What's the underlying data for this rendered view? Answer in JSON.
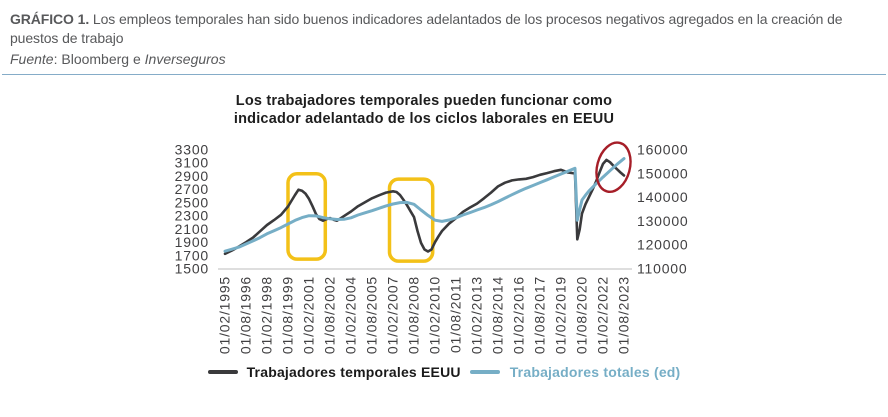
{
  "header": {
    "label": "GRÁFICO 1.",
    "caption": "Los empleos temporales han sido buenos indicadores adelantados de los procesos negativos agregados en la creación de puestos de trabajo",
    "source_word": "Fuente",
    "source_sep": ": ",
    "source_text": "Bloomberg e ",
    "source_name": "Inverseguros"
  },
  "chart_data": {
    "type": "line",
    "title_line1": "Los trabajadores temporales pueden funcionar como",
    "title_line2": "indicador adelantado de los ciclos laborales en EEUU",
    "grid": false,
    "legend_position": "bottom",
    "left_axis": {
      "min": 1500,
      "max": 3300,
      "ticks": [
        3300,
        3100,
        2900,
        2700,
        2500,
        2300,
        2100,
        1900,
        1700,
        1500
      ]
    },
    "right_axis": {
      "min": 110000,
      "max": 160000,
      "ticks": [
        160000,
        150000,
        140000,
        130000,
        120000,
        110000
      ]
    },
    "x_tick_labels": [
      "01/02/1995",
      "01/08/1996",
      "01/02/1998",
      "01/08/1999",
      "01/02/2001",
      "01/08/2002",
      "01/02/2004",
      "01/08/2005",
      "01/02/2007",
      "01/08/2008",
      "01/02/2010",
      "01/08/2011",
      "01/02/2013",
      "01/08/2014",
      "01/02/2016",
      "01/08/2017",
      "01/02/2019",
      "01/08/2020",
      "01/02/2022",
      "01/08/2023"
    ],
    "x_tick_month_step": 18,
    "series": [
      {
        "name": "Trabajadores temporales EEUU",
        "axis": "left",
        "color": "#3A3A3C",
        "width": 2.6,
        "points": [
          [
            0,
            1730
          ],
          [
            6,
            1780
          ],
          [
            12,
            1840
          ],
          [
            18,
            1905
          ],
          [
            24,
            1975
          ],
          [
            30,
            2070
          ],
          [
            36,
            2165
          ],
          [
            42,
            2240
          ],
          [
            48,
            2320
          ],
          [
            54,
            2445
          ],
          [
            60,
            2620
          ],
          [
            63,
            2700
          ],
          [
            66,
            2685
          ],
          [
            69,
            2640
          ],
          [
            72,
            2560
          ],
          [
            75,
            2450
          ],
          [
            78,
            2330
          ],
          [
            81,
            2255
          ],
          [
            84,
            2230
          ],
          [
            87,
            2255
          ],
          [
            90,
            2270
          ],
          [
            93,
            2245
          ],
          [
            96,
            2230
          ],
          [
            102,
            2300
          ],
          [
            108,
            2370
          ],
          [
            114,
            2450
          ],
          [
            120,
            2510
          ],
          [
            126,
            2570
          ],
          [
            132,
            2615
          ],
          [
            138,
            2655
          ],
          [
            144,
            2675
          ],
          [
            147,
            2665
          ],
          [
            150,
            2620
          ],
          [
            153,
            2545
          ],
          [
            156,
            2465
          ],
          [
            159,
            2375
          ],
          [
            162,
            2285
          ],
          [
            165,
            2075
          ],
          [
            168,
            1895
          ],
          [
            171,
            1795
          ],
          [
            174,
            1765
          ],
          [
            177,
            1795
          ],
          [
            180,
            1905
          ],
          [
            183,
            1995
          ],
          [
            186,
            2075
          ],
          [
            192,
            2185
          ],
          [
            198,
            2270
          ],
          [
            204,
            2365
          ],
          [
            210,
            2430
          ],
          [
            216,
            2490
          ],
          [
            222,
            2570
          ],
          [
            228,
            2655
          ],
          [
            234,
            2750
          ],
          [
            240,
            2805
          ],
          [
            246,
            2840
          ],
          [
            252,
            2855
          ],
          [
            258,
            2865
          ],
          [
            264,
            2890
          ],
          [
            270,
            2925
          ],
          [
            276,
            2950
          ],
          [
            282,
            2980
          ],
          [
            288,
            3000
          ],
          [
            294,
            2960
          ],
          [
            300,
            2945
          ],
          [
            302,
            1950
          ],
          [
            304,
            2100
          ],
          [
            306,
            2340
          ],
          [
            309,
            2480
          ],
          [
            312,
            2590
          ],
          [
            315,
            2700
          ],
          [
            318,
            2820
          ],
          [
            321,
            2960
          ],
          [
            324,
            3090
          ],
          [
            327,
            3150
          ],
          [
            330,
            3115
          ],
          [
            333,
            3060
          ],
          [
            336,
            3010
          ],
          [
            339,
            2960
          ],
          [
            342,
            2915
          ]
        ]
      },
      {
        "name": "Trabajadores totales (ed)",
        "axis": "right",
        "color": "#76AEC6",
        "width": 3.0,
        "points": [
          [
            0,
            117500
          ],
          [
            6,
            118300
          ],
          [
            12,
            119200
          ],
          [
            18,
            120500
          ],
          [
            24,
            121800
          ],
          [
            30,
            123200
          ],
          [
            36,
            124800
          ],
          [
            42,
            126100
          ],
          [
            48,
            127400
          ],
          [
            54,
            128900
          ],
          [
            60,
            130400
          ],
          [
            66,
            131600
          ],
          [
            72,
            132400
          ],
          [
            78,
            132300
          ],
          [
            84,
            131600
          ],
          [
            90,
            131100
          ],
          [
            96,
            130800
          ],
          [
            102,
            130900
          ],
          [
            108,
            131500
          ],
          [
            114,
            132700
          ],
          [
            120,
            133600
          ],
          [
            126,
            134500
          ],
          [
            132,
            135500
          ],
          [
            138,
            136500
          ],
          [
            144,
            137300
          ],
          [
            150,
            137900
          ],
          [
            156,
            138000
          ],
          [
            162,
            137200
          ],
          [
            168,
            134800
          ],
          [
            174,
            132500
          ],
          [
            180,
            130500
          ],
          [
            186,
            130000
          ],
          [
            192,
            130600
          ],
          [
            198,
            131500
          ],
          [
            204,
            132700
          ],
          [
            210,
            133700
          ],
          [
            216,
            134800
          ],
          [
            222,
            135800
          ],
          [
            228,
            137000
          ],
          [
            234,
            138300
          ],
          [
            240,
            139800
          ],
          [
            246,
            141200
          ],
          [
            252,
            142600
          ],
          [
            258,
            143900
          ],
          [
            264,
            145100
          ],
          [
            270,
            146300
          ],
          [
            276,
            147500
          ],
          [
            282,
            148700
          ],
          [
            288,
            149900
          ],
          [
            294,
            151100
          ],
          [
            300,
            152300
          ],
          [
            302,
            130500
          ],
          [
            304,
            135000
          ],
          [
            306,
            139000
          ],
          [
            309,
            141000
          ],
          [
            312,
            142800
          ],
          [
            318,
            145800
          ],
          [
            324,
            148600
          ],
          [
            330,
            151300
          ],
          [
            336,
            154000
          ],
          [
            342,
            156400
          ]
        ]
      }
    ],
    "annotations": {
      "highlight_boxes": [
        {
          "x1_month": 54,
          "x2_month": 86,
          "y_bottom": 1650,
          "y_top": 2940,
          "axis": "left",
          "color": "#F3C118"
        },
        {
          "x1_month": 141,
          "x2_month": 178,
          "y_bottom": 1620,
          "y_top": 2860,
          "axis": "left",
          "color": "#F3C118"
        }
      ],
      "ellipse": {
        "cx_month": 333,
        "cy_value": 3040,
        "rx_months": 14,
        "ry_value": 380,
        "axis": "left",
        "color": "#A61E28",
        "rotate_deg": 15
      }
    },
    "legend": [
      {
        "label": "Trabajadores temporales EEUU",
        "color": "#1A1A1A",
        "line_color": "#3A3A3C"
      },
      {
        "label": "Trabajadores totales (ed)",
        "color": "#76AEC6",
        "line_color": "#76AEC6"
      }
    ]
  },
  "colors": {
    "header_text": "#58595B",
    "divider": "#85ACC8",
    "axis_text": "#414042",
    "axis_line": "#C9C9C9",
    "background": "#FFFFFF"
  }
}
